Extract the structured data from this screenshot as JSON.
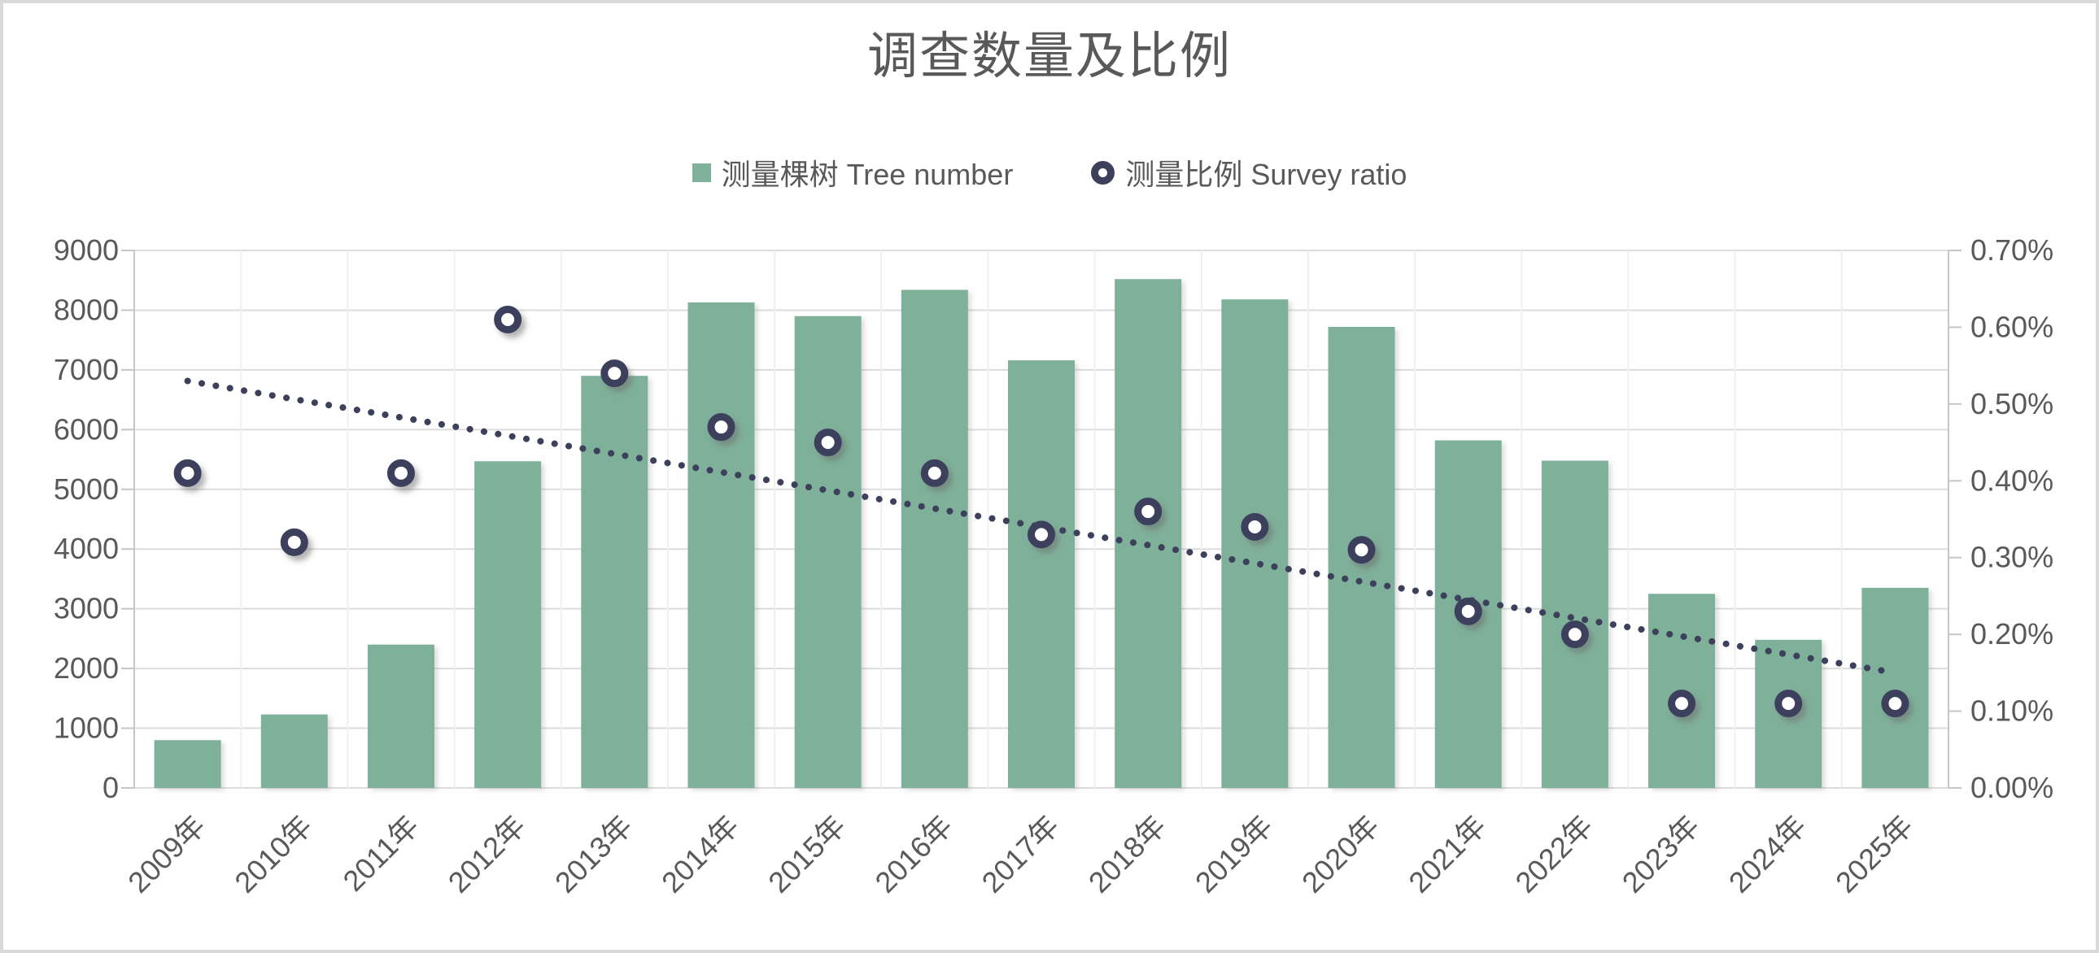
{
  "title": "调查数量及比例",
  "legend": {
    "items": [
      {
        "label": "测量棵树 Tree number",
        "marker": "square-icon"
      },
      {
        "label": "测量比例 Survey ratio",
        "marker": "ring-icon"
      }
    ]
  },
  "colors": {
    "bar": "#7fb09a",
    "navy": "#3d405b",
    "grid": "#dcdcdc",
    "grid_vertical": "#f0f0f0",
    "axis": "#c6c6c6",
    "text": "#595959",
    "title_text": "#595959",
    "background": "#ffffff",
    "frame": "#d9d9d9"
  },
  "chart_data": {
    "type": "combo-bar-scatter",
    "title": "调查数量及比例",
    "categories": [
      "2009年",
      "2010年",
      "2011年",
      "2012年",
      "2013年",
      "2014年",
      "2015年",
      "2016年",
      "2017年",
      "2018年",
      "2019年",
      "2020年",
      "2021年",
      "2022年",
      "2023年",
      "2024年",
      "2025年"
    ],
    "series": [
      {
        "name": "测量棵树 Tree number",
        "type": "bar",
        "axis": "left",
        "values": [
          800,
          1230,
          2400,
          5470,
          6900,
          8130,
          7900,
          8340,
          7160,
          8520,
          8180,
          7720,
          5820,
          5480,
          3250,
          2480,
          3350
        ]
      },
      {
        "name": "测量比例 Survey ratio",
        "type": "scatter",
        "axis": "right",
        "unit": "%",
        "values": [
          0.41,
          0.32,
          0.41,
          0.61,
          0.54,
          0.47,
          0.45,
          0.41,
          0.33,
          0.36,
          0.34,
          0.31,
          0.23,
          0.2,
          0.11,
          0.11,
          0.11
        ]
      },
      {
        "name": "dotted-trendline",
        "type": "line-dotted",
        "axis": "right",
        "unit": "%",
        "start": 0.53,
        "end": 0.15
      }
    ],
    "left_axis": {
      "min": 0,
      "max": 9000,
      "step": 1000,
      "labels": [
        "0",
        "1000",
        "2000",
        "3000",
        "4000",
        "5000",
        "6000",
        "7000",
        "8000",
        "9000"
      ]
    },
    "right_axis": {
      "min": 0,
      "max": 0.7,
      "step": 0.1,
      "labels": [
        "0.00%",
        "0.10%",
        "0.20%",
        "0.30%",
        "0.40%",
        "0.50%",
        "0.60%",
        "0.70%"
      ]
    },
    "grid": "horizontal-major",
    "legend_position": "top"
  }
}
